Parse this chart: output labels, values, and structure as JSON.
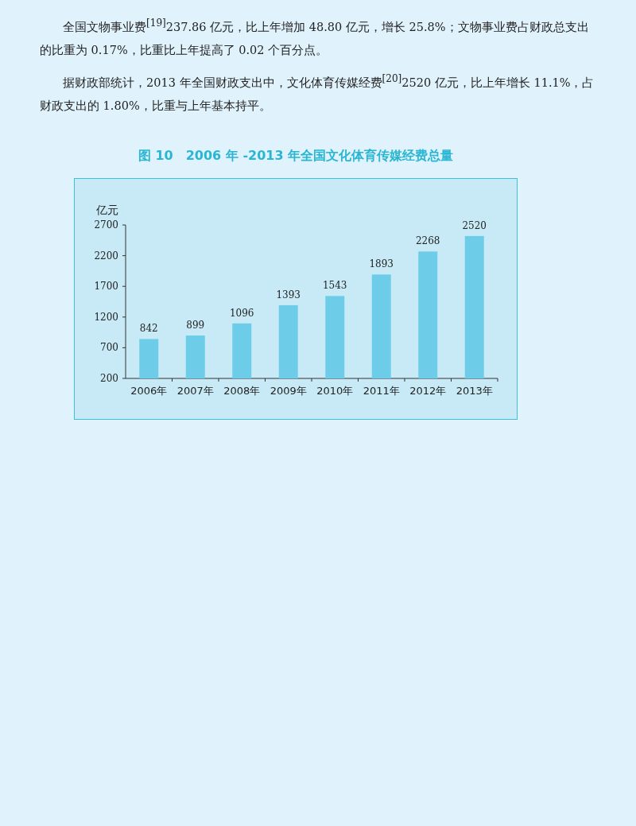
{
  "chart_data": {
    "type": "bar",
    "title": "图 10　2006 年 -2013 年全国文化体育传媒经费总量",
    "ylabel": "亿元",
    "categories": [
      "2006年",
      "2007年",
      "2008年",
      "2009年",
      "2010年",
      "2011年",
      "2012年",
      "2013年"
    ],
    "values": [
      842,
      899,
      1096,
      1393,
      1543,
      1893,
      2268,
      2520
    ],
    "color": "#6dcde9",
    "ylim": [
      200,
      2700
    ],
    "yticks": [
      200,
      700,
      1200,
      1700,
      2200,
      2700
    ],
    "data_labels": true,
    "grid": false,
    "annotations": [
      "全国文物事业费$^{[19]}$237.86 亿元，比上年增加 48.80 亿元，增长 25.8%；文物事业费占财政总支出的比重为 0.17%，比重比上年提高了 0.02 个百分点。",
      "据财政部统计，2013 年全国财政支出中，文化体育传媒经费$^{[20]}$2520 亿元，比上年增长 11.1%，占财政支出的 1.80%，比重与上年基本持平。"
    ]
  }
}
